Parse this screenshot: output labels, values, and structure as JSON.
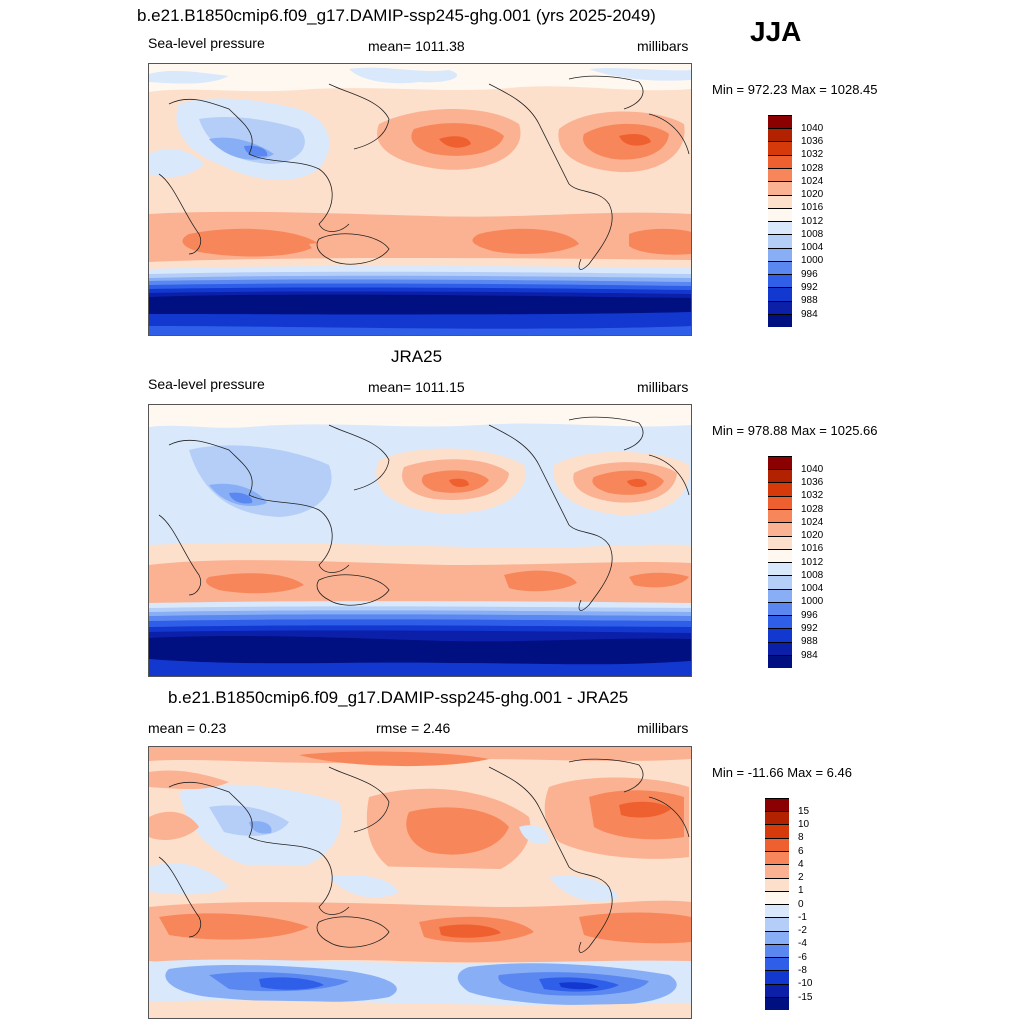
{
  "header": {
    "title": "b.e21.B1850cmip6.f09_g17.DAMIP-ssp245-ghg.001 (yrs 2025-2049)",
    "season": "JJA"
  },
  "panels": [
    {
      "id": "model",
      "left_label": "Sea-level pressure",
      "center_label": "mean= 1011.38",
      "right_label": "millibars",
      "minmax": "Min = 972.23 Max = 1028.45",
      "colorbar_labels": [
        "1040",
        "1036",
        "1032",
        "1028",
        "1024",
        "1020",
        "1016",
        "1012",
        "1008",
        "1004",
        "1000",
        "996",
        "992",
        "988",
        "984"
      ]
    },
    {
      "id": "obs",
      "title": "JRA25",
      "left_label": "Sea-level pressure",
      "center_label": "mean= 1011.15",
      "right_label": "millibars",
      "minmax": "Min = 978.88 Max = 1025.66",
      "colorbar_labels": [
        "1040",
        "1036",
        "1032",
        "1028",
        "1024",
        "1020",
        "1016",
        "1012",
        "1008",
        "1004",
        "1000",
        "996",
        "992",
        "988",
        "984"
      ]
    },
    {
      "id": "diff",
      "title": "b.e21.B1850cmip6.f09_g17.DAMIP-ssp245-ghg.001 - JRA25",
      "left_label": "mean =   0.23",
      "center_label": "rmse =   2.46",
      "right_label": "millibars",
      "minmax": "Min = -11.66 Max =   6.46",
      "colorbar_labels": [
        "15",
        "10",
        "8",
        "6",
        "4",
        "2",
        "1",
        "0",
        "-1",
        "-2",
        "-4",
        "-6",
        "-8",
        "-10",
        "-15"
      ]
    }
  ],
  "colors": {
    "abs_scale": [
      "#8b0000",
      "#b22200",
      "#d63a0a",
      "#ef6030",
      "#f7875a",
      "#fbb293",
      "#fde0cc",
      "#fff8f0",
      "#d9e8fb",
      "#b5cef8",
      "#88aef5",
      "#5a88f0",
      "#2f5fe8",
      "#1238d0",
      "#0b1fa8",
      "#001080"
    ],
    "diff_scale": [
      "#8b0000",
      "#b22200",
      "#d63a0a",
      "#ef6030",
      "#f7875a",
      "#fbb293",
      "#fde0cc",
      "#fff8f0",
      "#d9e8fb",
      "#b5cef8",
      "#88aef5",
      "#5a88f0",
      "#2f5fe8",
      "#1238d0",
      "#0b1fa8",
      "#001080"
    ]
  }
}
